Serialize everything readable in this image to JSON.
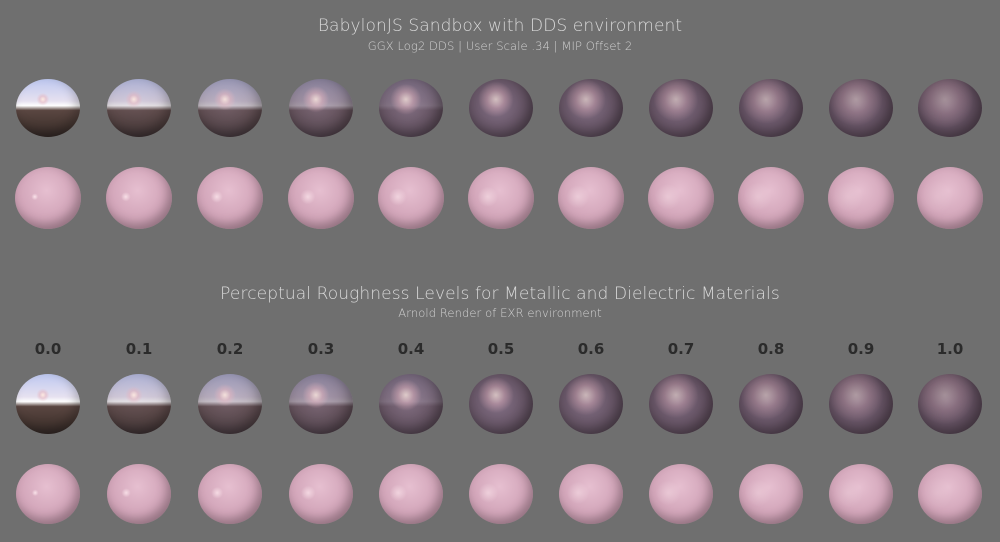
{
  "header": {
    "title": "BabylonJS Sandbox with DDS environment",
    "subtitle": "GGX Log2 DDS  |  User Scale .34  |  MIP Offset 2"
  },
  "section": {
    "title": "Perceptual Roughness Levels for Metallic and Dielectric Materials",
    "subtitle": "Arnold Render of EXR environment"
  },
  "roughness_labels": [
    "0.0",
    "0.1",
    "0.2",
    "0.3",
    "0.4",
    "0.5",
    "0.6",
    "0.7",
    "0.8",
    "0.9",
    "1.0"
  ],
  "rows": [
    {
      "name": "babylon-metallic",
      "material": "metallic"
    },
    {
      "name": "babylon-dielectric",
      "material": "dielectric"
    },
    {
      "name": "arnold-metallic",
      "material": "metallic"
    },
    {
      "name": "arnold-dielectric",
      "material": "dielectric"
    }
  ],
  "colors": {
    "background": "#6f6f6f",
    "metal_tint": "#b48c9c",
    "dielectric_tint": "#d7a7b8",
    "sky": "#e8ecff",
    "ground": "#4a3a36"
  }
}
